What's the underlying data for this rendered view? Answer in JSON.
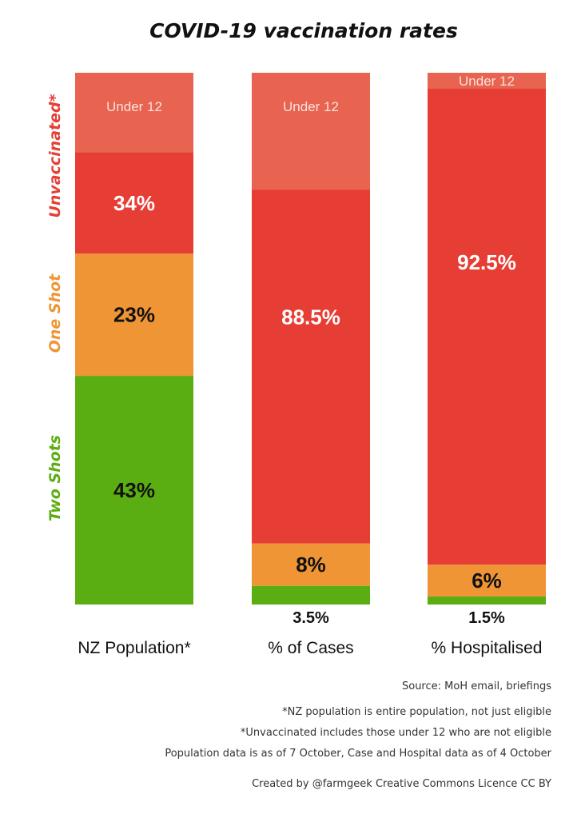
{
  "colors": {
    "under12": "#e86350",
    "unvaccinated": "#e63e34",
    "one_shot": "#ef9535",
    "two_shots": "#5bae12"
  },
  "chart_data": {
    "type": "bar",
    "stacked": true,
    "title": "COVID-19 vaccination rates",
    "categories": [
      "NZ Population*",
      "% of Cases",
      "% Hospitalised"
    ],
    "series": [
      {
        "name": "Two Shots",
        "key": "two_shots",
        "values": [
          43,
          3.5,
          1.5
        ],
        "labels": [
          "43%",
          "3.5%",
          "1.5%"
        ]
      },
      {
        "name": "One Shot",
        "key": "one_shot",
        "values": [
          23,
          8,
          6
        ],
        "labels": [
          "23%",
          "8%",
          "6%"
        ]
      },
      {
        "name": "Unvaccinated*",
        "key": "unvaccinated",
        "values": [
          34,
          88.5,
          92.5
        ],
        "labels": [
          "34%",
          "88.5%",
          "92.5%"
        ]
      }
    ],
    "under12_portion": [
      15,
      22,
      3
    ],
    "under12_label": "Under 12",
    "ylim": [
      0,
      100
    ]
  },
  "legend": {
    "unvaccinated": "Unvaccinated*",
    "one_shot": "One Shot",
    "two_shots": "Two Shots"
  },
  "notes": {
    "source": "Source: MoH email, briefings",
    "note1": "*NZ population is entire population, not just eligible",
    "note2": "*Unvaccinated includes those under 12 who are not eligible",
    "note3": "Population data is as of 7 October, Case and  Hospital data as of 4 October",
    "credit": "Created by  @farmgeek Creative Commons Licence CC BY"
  }
}
